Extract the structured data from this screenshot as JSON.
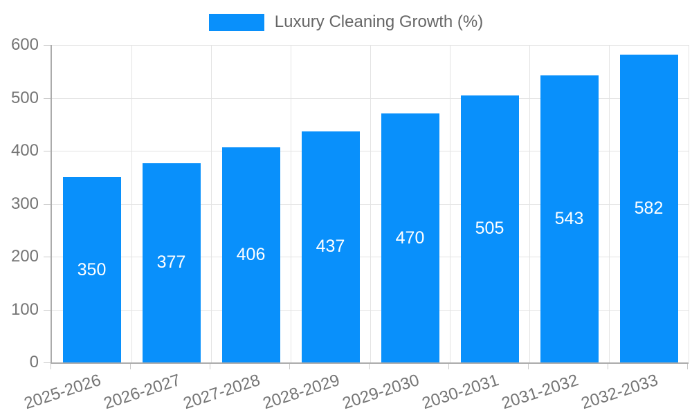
{
  "legend": {
    "label": "Luxury Cleaning Growth (%)"
  },
  "chart_data": {
    "type": "bar",
    "title": "Luxury Cleaning Growth (%)",
    "categories": [
      "2025-2026",
      "2026-2027",
      "2027-2028",
      "2028-2029",
      "2029-2030",
      "2030-2031",
      "2031-2032",
      "2032-2033"
    ],
    "values": [
      350,
      377,
      406,
      437,
      470,
      505,
      543,
      582
    ],
    "xlabel": "",
    "ylabel": "",
    "ylim": [
      0,
      600
    ],
    "yticks": [
      0,
      100,
      200,
      300,
      400,
      500,
      600
    ],
    "grid": true,
    "legend_position": "top",
    "bar_color": "#0990fb",
    "value_label_color": "#ffffff",
    "axis_text_color": "#757575",
    "legend_text_color": "#666666",
    "gridline_color": "#e3e3e3",
    "axis_line_color": "#ababab"
  }
}
